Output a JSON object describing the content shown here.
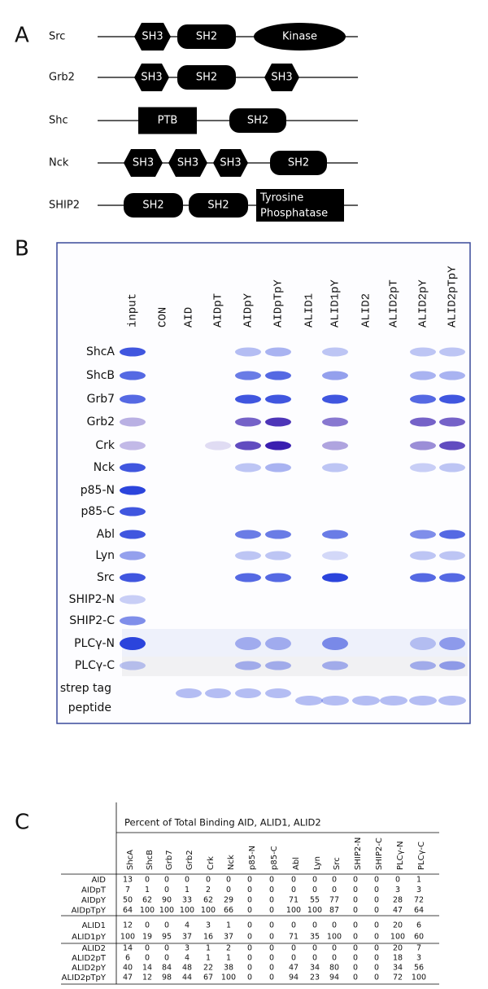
{
  "panel_a": {
    "label": "A",
    "proteins": [
      {
        "name": "Src",
        "domains": [
          "SH3",
          "SH2",
          "Kinase"
        ]
      },
      {
        "name": "Grb2",
        "domains": [
          "SH3",
          "SH2",
          "SH3"
        ]
      },
      {
        "name": "Shc",
        "domains": [
          "PTB",
          "SH2"
        ]
      },
      {
        "name": "Nck",
        "domains": [
          "SH3",
          "SH3",
          "SH3",
          "SH2"
        ]
      },
      {
        "name": "SHIP2",
        "domains": [
          "SH2",
          "SH2",
          {
            "lines": [
              "Tyrosine",
              "Phosphatase"
            ]
          }
        ]
      }
    ]
  },
  "panel_b": {
    "label": "B",
    "lanes": [
      "input",
      "CON",
      "AID",
      "AIDpT",
      "AIDpY",
      "AIDpTpY",
      "ALID1",
      "ALID1pY",
      "ALID2",
      "ALID2pT",
      "ALID2pY",
      "ALID2pTpY"
    ],
    "rows": [
      "ShcA",
      "ShcB",
      "Grb7",
      "Grb2",
      "Crk",
      "Nck",
      "p85-N",
      "p85-C",
      "Abl",
      "Lyn",
      "Src",
      "SHIP2-N",
      "SHIP2-C",
      "PLCγ-N",
      "PLCγ-C"
    ],
    "peptide_label": [
      "strep tag",
      "peptide"
    ]
  },
  "panel_c": {
    "label": "C",
    "title": "Percent of Total Binding AID, ALID1, ALID2",
    "columns": [
      "ShcA",
      "ShcB",
      "Grb7",
      "Grb2",
      "Crk",
      "Nck",
      "p85-N",
      "p85-C",
      "Abl",
      "Lyn",
      "Src",
      "SHIP2-N",
      "SHIP2-C",
      "PLCγ-N",
      "PLCγ-C"
    ],
    "groups": [
      [
        {
          "label": "AID",
          "values": [
            13,
            0,
            0,
            0,
            0,
            0,
            0,
            0,
            0,
            0,
            0,
            0,
            0,
            0,
            1
          ]
        },
        {
          "label": "AIDpT",
          "values": [
            7,
            1,
            0,
            1,
            2,
            0,
            0,
            0,
            0,
            0,
            0,
            0,
            0,
            3,
            3
          ]
        },
        {
          "label": "AIDpY",
          "values": [
            50,
            62,
            90,
            33,
            62,
            29,
            0,
            0,
            71,
            55,
            77,
            0,
            0,
            28,
            72
          ]
        },
        {
          "label": "AIDpTpY",
          "values": [
            64,
            100,
            100,
            100,
            100,
            66,
            0,
            0,
            100,
            100,
            87,
            0,
            0,
            47,
            64
          ]
        }
      ],
      [
        {
          "label": "ALID1",
          "values": [
            12,
            0,
            0,
            4,
            3,
            1,
            0,
            0,
            0,
            0,
            0,
            0,
            0,
            20,
            6
          ]
        },
        {
          "label": "ALID1pY",
          "values": [
            100,
            19,
            95,
            37,
            16,
            37,
            0,
            0,
            71,
            35,
            100,
            0,
            0,
            100,
            60
          ]
        }
      ],
      [
        {
          "label": "ALID2",
          "values": [
            14,
            0,
            0,
            3,
            1,
            2,
            0,
            0,
            0,
            0,
            0,
            0,
            0,
            20,
            7
          ]
        },
        {
          "label": "ALID2pT",
          "values": [
            6,
            0,
            0,
            4,
            1,
            1,
            0,
            0,
            0,
            0,
            0,
            0,
            0,
            18,
            3
          ]
        },
        {
          "label": "ALID2pY",
          "values": [
            40,
            14,
            84,
            48,
            22,
            38,
            0,
            0,
            47,
            34,
            80,
            0,
            0,
            34,
            56
          ]
        },
        {
          "label": "ALID2pTpY",
          "values": [
            47,
            12,
            98,
            44,
            67,
            100,
            0,
            0,
            94,
            23,
            94,
            0,
            0,
            72,
            100
          ]
        }
      ]
    ]
  }
}
